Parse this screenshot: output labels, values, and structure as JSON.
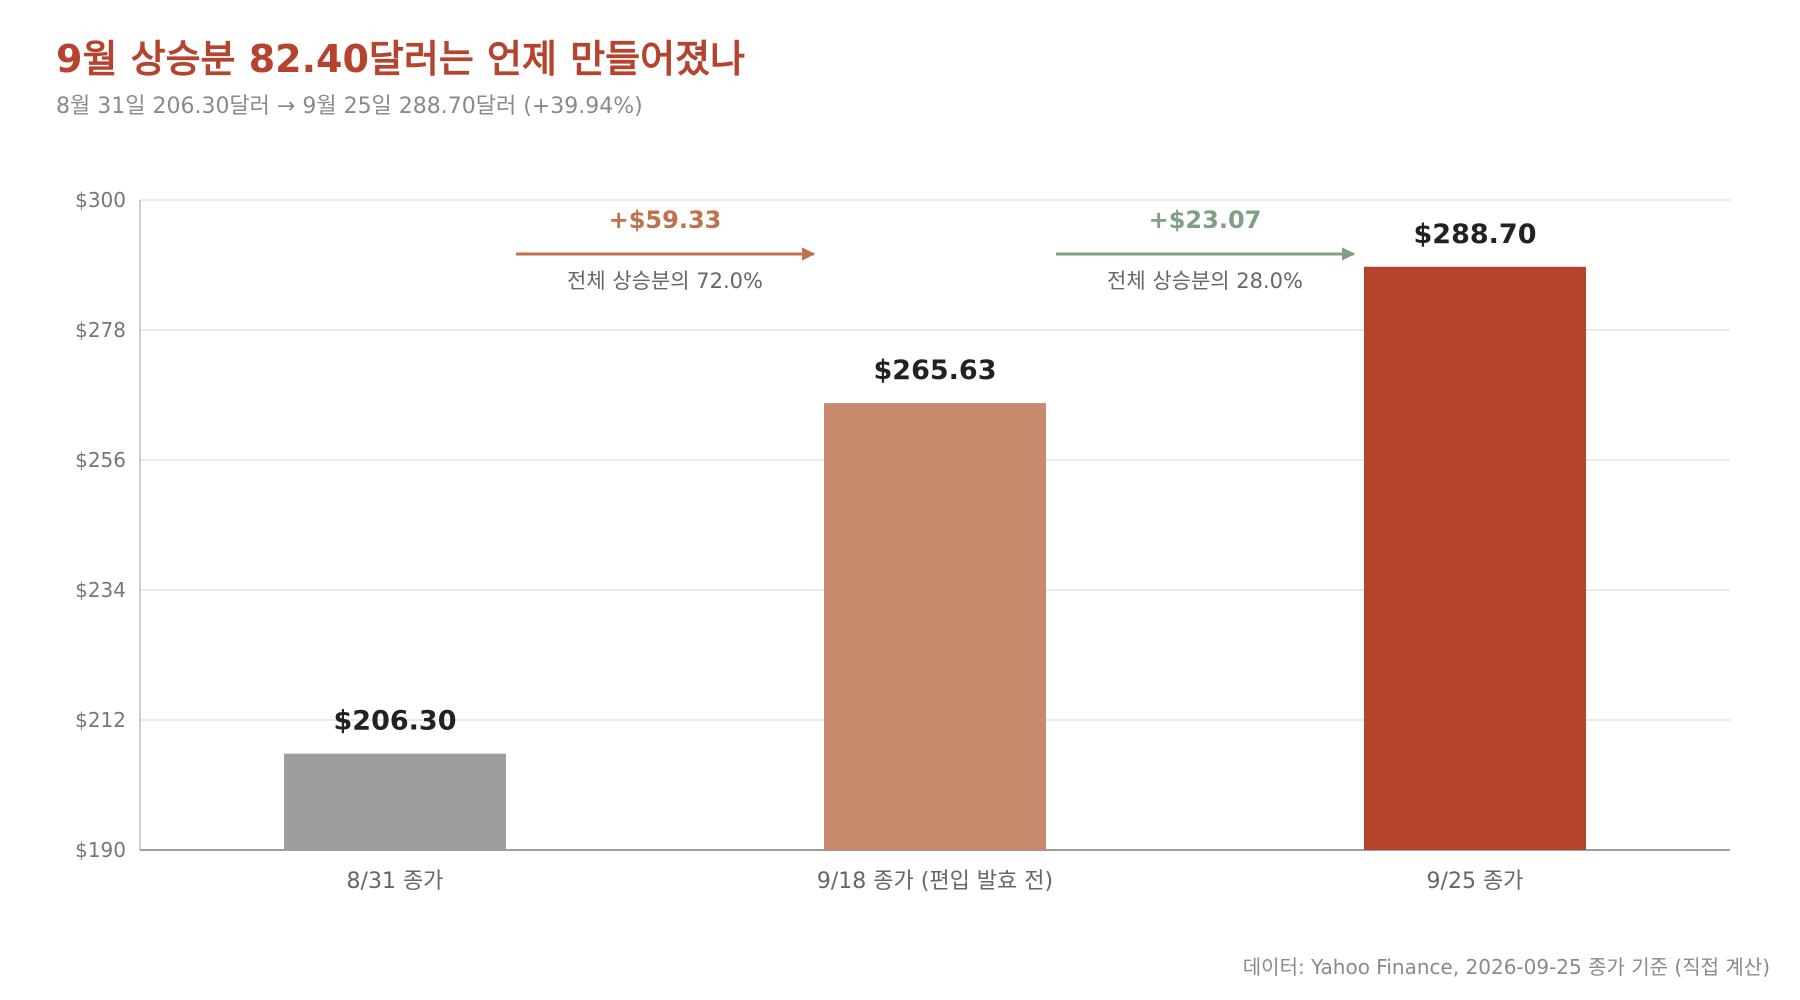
{
  "header": {
    "title": "9월 상승분 82.40달러는 언제 만들어졌나",
    "subtitle": "8월 31일 206.30달러 → 9월 25일 288.70달러 (+39.94%)"
  },
  "source": "데이터: Yahoo Finance, 2026-09-25 종가 기준 (직접 계산)",
  "chart_data": {
    "type": "bar",
    "title": "9월 상승분 82.40달러는 언제 만들어졌나",
    "subtitle": "8월 31일 206.30달러 → 9월 25일 288.70달러 (+39.94%)",
    "categories": [
      "8/31 종가",
      "9/18 종가 (편입 발효 전)",
      "9/25 종가"
    ],
    "values": [
      206.3,
      265.63,
      288.7
    ],
    "value_labels": [
      "$206.30",
      "$265.63",
      "$288.70"
    ],
    "bar_colors": [
      "#9e9e9e",
      "#c8896c",
      "#b5432e"
    ],
    "ylim": [
      190,
      300
    ],
    "yticks": [
      190,
      212,
      234,
      256,
      278,
      300
    ],
    "ytick_labels": [
      "$190",
      "$212",
      "$234",
      "$256",
      "$278",
      "$300"
    ],
    "grid": true,
    "legend": "none",
    "annotations": [
      {
        "from": 0,
        "to": 1,
        "gain": "+$59.33",
        "share": "전체 상승분의 72.0%",
        "color": "#c0714d"
      },
      {
        "from": 1,
        "to": 2,
        "gain": "+$23.07",
        "share": "전체 상승분의 28.0%",
        "color": "#7fa085"
      }
    ]
  }
}
